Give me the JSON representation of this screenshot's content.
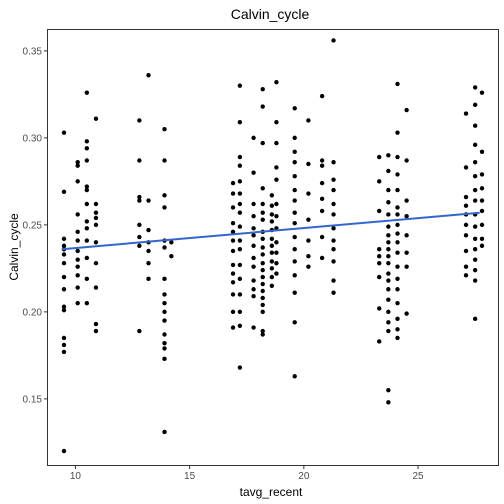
{
  "chart_data": {
    "type": "scatter",
    "title": "Calvin_cycle",
    "xlabel": "tavg_recent",
    "ylabel": "Calvin_cycle",
    "xlim": [
      8.8,
      28.5
    ],
    "ylim": [
      0.112,
      0.362
    ],
    "x_ticks": [
      10,
      15,
      20,
      25
    ],
    "y_ticks": [
      0.15,
      0.2,
      0.25,
      0.3,
      0.35
    ],
    "x_tick_labels": [
      "10",
      "15",
      "20",
      "25"
    ],
    "y_tick_labels": [
      "0.15",
      "0.20",
      "0.25",
      "0.30",
      "0.35"
    ],
    "grid": false,
    "point_color": "#000000",
    "trend_line": {
      "x": [
        9.4,
        27.7
      ],
      "y": [
        0.236,
        0.257
      ],
      "color": "#3366cc"
    },
    "points": [
      [
        9.5,
        0.303
      ],
      [
        9.5,
        0.269
      ],
      [
        9.5,
        0.242
      ],
      [
        9.5,
        0.238
      ],
      [
        9.5,
        0.236
      ],
      [
        9.5,
        0.233
      ],
      [
        9.5,
        0.228
      ],
      [
        9.5,
        0.22
      ],
      [
        9.5,
        0.213
      ],
      [
        9.5,
        0.203
      ],
      [
        9.5,
        0.201
      ],
      [
        9.5,
        0.185
      ],
      [
        9.5,
        0.181
      ],
      [
        9.5,
        0.177
      ],
      [
        9.5,
        0.12
      ],
      [
        10.1,
        0.286
      ],
      [
        10.1,
        0.284
      ],
      [
        10.1,
        0.275
      ],
      [
        10.1,
        0.256
      ],
      [
        10.1,
        0.246
      ],
      [
        10.1,
        0.241
      ],
      [
        10.1,
        0.235
      ],
      [
        10.1,
        0.23
      ],
      [
        10.1,
        0.226
      ],
      [
        10.1,
        0.221
      ],
      [
        10.1,
        0.214
      ],
      [
        10.1,
        0.205
      ],
      [
        10.5,
        0.326
      ],
      [
        10.5,
        0.298
      ],
      [
        10.5,
        0.294
      ],
      [
        10.5,
        0.287
      ],
      [
        10.5,
        0.272
      ],
      [
        10.5,
        0.27
      ],
      [
        10.5,
        0.262
      ],
      [
        10.5,
        0.252
      ],
      [
        10.5,
        0.248
      ],
      [
        10.5,
        0.241
      ],
      [
        10.5,
        0.231
      ],
      [
        10.5,
        0.219
      ],
      [
        10.5,
        0.205
      ],
      [
        10.9,
        0.311
      ],
      [
        10.9,
        0.262
      ],
      [
        10.9,
        0.257
      ],
      [
        10.9,
        0.254
      ],
      [
        10.9,
        0.25
      ],
      [
        10.9,
        0.24
      ],
      [
        10.9,
        0.228
      ],
      [
        10.9,
        0.214
      ],
      [
        10.9,
        0.193
      ],
      [
        10.9,
        0.189
      ],
      [
        12.8,
        0.31
      ],
      [
        12.8,
        0.287
      ],
      [
        12.8,
        0.266
      ],
      [
        12.8,
        0.264
      ],
      [
        12.8,
        0.25
      ],
      [
        12.8,
        0.243
      ],
      [
        12.8,
        0.238
      ],
      [
        12.8,
        0.189
      ],
      [
        13.2,
        0.336
      ],
      [
        13.2,
        0.264
      ],
      [
        13.2,
        0.247
      ],
      [
        13.2,
        0.24
      ],
      [
        13.2,
        0.235
      ],
      [
        13.2,
        0.228
      ],
      [
        13.2,
        0.219
      ],
      [
        13.9,
        0.305
      ],
      [
        13.9,
        0.287
      ],
      [
        13.9,
        0.267
      ],
      [
        13.9,
        0.26
      ],
      [
        13.9,
        0.241
      ],
      [
        13.9,
        0.237
      ],
      [
        13.9,
        0.219
      ],
      [
        13.9,
        0.21
      ],
      [
        13.9,
        0.205
      ],
      [
        13.9,
        0.2
      ],
      [
        13.9,
        0.195
      ],
      [
        13.9,
        0.187
      ],
      [
        13.9,
        0.182
      ],
      [
        13.9,
        0.179
      ],
      [
        13.9,
        0.173
      ],
      [
        13.9,
        0.131
      ],
      [
        14.2,
        0.24
      ],
      [
        14.2,
        0.232
      ],
      [
        16.9,
        0.274
      ],
      [
        16.9,
        0.268
      ],
      [
        16.9,
        0.26
      ],
      [
        16.9,
        0.251
      ],
      [
        16.9,
        0.246
      ],
      [
        16.9,
        0.241
      ],
      [
        16.9,
        0.235
      ],
      [
        16.9,
        0.227
      ],
      [
        16.9,
        0.222
      ],
      [
        16.9,
        0.217
      ],
      [
        16.9,
        0.21
      ],
      [
        16.9,
        0.2
      ],
      [
        16.9,
        0.191
      ],
      [
        17.2,
        0.33
      ],
      [
        17.2,
        0.309
      ],
      [
        17.2,
        0.289
      ],
      [
        17.2,
        0.284
      ],
      [
        17.2,
        0.275
      ],
      [
        17.2,
        0.268
      ],
      [
        17.2,
        0.262
      ],
      [
        17.2,
        0.257
      ],
      [
        17.2,
        0.249
      ],
      [
        17.2,
        0.241
      ],
      [
        17.2,
        0.236
      ],
      [
        17.2,
        0.227
      ],
      [
        17.2,
        0.219
      ],
      [
        17.2,
        0.21
      ],
      [
        17.2,
        0.2
      ],
      [
        17.2,
        0.192
      ],
      [
        17.2,
        0.168
      ],
      [
        17.8,
        0.3
      ],
      [
        17.8,
        0.28
      ],
      [
        17.8,
        0.262
      ],
      [
        17.8,
        0.255
      ],
      [
        17.8,
        0.248
      ],
      [
        17.8,
        0.244
      ],
      [
        17.8,
        0.238
      ],
      [
        17.8,
        0.231
      ],
      [
        17.8,
        0.226
      ],
      [
        17.8,
        0.218
      ],
      [
        17.8,
        0.213
      ],
      [
        17.8,
        0.209
      ],
      [
        17.8,
        0.191
      ],
      [
        18.2,
        0.328
      ],
      [
        18.2,
        0.318
      ],
      [
        18.2,
        0.297
      ],
      [
        18.2,
        0.271
      ],
      [
        18.2,
        0.262
      ],
      [
        18.2,
        0.257
      ],
      [
        18.2,
        0.253
      ],
      [
        18.2,
        0.246
      ],
      [
        18.2,
        0.242
      ],
      [
        18.2,
        0.237
      ],
      [
        18.2,
        0.233
      ],
      [
        18.2,
        0.228
      ],
      [
        18.2,
        0.224
      ],
      [
        18.2,
        0.22
      ],
      [
        18.2,
        0.216
      ],
      [
        18.2,
        0.212
      ],
      [
        18.2,
        0.208
      ],
      [
        18.2,
        0.204
      ],
      [
        18.2,
        0.2
      ],
      [
        18.2,
        0.189
      ],
      [
        18.2,
        0.187
      ],
      [
        18.6,
        0.267
      ],
      [
        18.6,
        0.261
      ],
      [
        18.6,
        0.256
      ],
      [
        18.6,
        0.252
      ],
      [
        18.6,
        0.247
      ],
      [
        18.6,
        0.242
      ],
      [
        18.6,
        0.238
      ],
      [
        18.6,
        0.234
      ],
      [
        18.6,
        0.229
      ],
      [
        18.6,
        0.225
      ],
      [
        18.6,
        0.22
      ],
      [
        18.6,
        0.215
      ],
      [
        18.8,
        0.332
      ],
      [
        18.8,
        0.309
      ],
      [
        18.8,
        0.297
      ],
      [
        18.8,
        0.283
      ],
      [
        18.8,
        0.276
      ],
      [
        18.8,
        0.262
      ],
      [
        18.8,
        0.255
      ],
      [
        18.8,
        0.248
      ],
      [
        18.8,
        0.24
      ],
      [
        18.8,
        0.234
      ],
      [
        18.8,
        0.228
      ],
      [
        18.8,
        0.222
      ],
      [
        19.6,
        0.317
      ],
      [
        19.6,
        0.3
      ],
      [
        19.6,
        0.292
      ],
      [
        19.6,
        0.286
      ],
      [
        19.6,
        0.278
      ],
      [
        19.6,
        0.27
      ],
      [
        19.6,
        0.264
      ],
      [
        19.6,
        0.257
      ],
      [
        19.6,
        0.251
      ],
      [
        19.6,
        0.243
      ],
      [
        19.6,
        0.236
      ],
      [
        19.6,
        0.229
      ],
      [
        19.6,
        0.221
      ],
      [
        19.6,
        0.211
      ],
      [
        19.6,
        0.194
      ],
      [
        19.6,
        0.163
      ],
      [
        20.2,
        0.31
      ],
      [
        20.2,
        0.285
      ],
      [
        20.2,
        0.268
      ],
      [
        20.2,
        0.253
      ],
      [
        20.2,
        0.241
      ],
      [
        20.2,
        0.232
      ],
      [
        20.2,
        0.226
      ],
      [
        20.8,
        0.324
      ],
      [
        20.8,
        0.287
      ],
      [
        20.8,
        0.284
      ],
      [
        20.8,
        0.274
      ],
      [
        20.8,
        0.265
      ],
      [
        20.8,
        0.258
      ],
      [
        20.8,
        0.243
      ],
      [
        20.8,
        0.231
      ],
      [
        21.3,
        0.356
      ],
      [
        21.3,
        0.286
      ],
      [
        21.3,
        0.276
      ],
      [
        21.3,
        0.27
      ],
      [
        21.3,
        0.262
      ],
      [
        21.3,
        0.256
      ],
      [
        21.3,
        0.248
      ],
      [
        21.3,
        0.241
      ],
      [
        21.3,
        0.236
      ],
      [
        21.3,
        0.229
      ],
      [
        21.3,
        0.218
      ],
      [
        21.3,
        0.211
      ],
      [
        23.3,
        0.289
      ],
      [
        23.3,
        0.275
      ],
      [
        23.3,
        0.258
      ],
      [
        23.3,
        0.236
      ],
      [
        23.3,
        0.232
      ],
      [
        23.3,
        0.228
      ],
      [
        23.3,
        0.22
      ],
      [
        23.3,
        0.202
      ],
      [
        23.3,
        0.183
      ],
      [
        23.7,
        0.29
      ],
      [
        23.7,
        0.281
      ],
      [
        23.7,
        0.27
      ],
      [
        23.7,
        0.263
      ],
      [
        23.7,
        0.256
      ],
      [
        23.7,
        0.249
      ],
      [
        23.7,
        0.244
      ],
      [
        23.7,
        0.24
      ],
      [
        23.7,
        0.236
      ],
      [
        23.7,
        0.232
      ],
      [
        23.7,
        0.228
      ],
      [
        23.7,
        0.222
      ],
      [
        23.7,
        0.218
      ],
      [
        23.7,
        0.213
      ],
      [
        23.7,
        0.207
      ],
      [
        23.7,
        0.2
      ],
      [
        23.7,
        0.194
      ],
      [
        23.7,
        0.189
      ],
      [
        23.7,
        0.155
      ],
      [
        23.7,
        0.148
      ],
      [
        24.1,
        0.331
      ],
      [
        24.1,
        0.303
      ],
      [
        24.1,
        0.289
      ],
      [
        24.1,
        0.279
      ],
      [
        24.1,
        0.27
      ],
      [
        24.1,
        0.26
      ],
      [
        24.1,
        0.256
      ],
      [
        24.1,
        0.25
      ],
      [
        24.1,
        0.245
      ],
      [
        24.1,
        0.24
      ],
      [
        24.1,
        0.234
      ],
      [
        24.1,
        0.226
      ],
      [
        24.1,
        0.219
      ],
      [
        24.1,
        0.213
      ],
      [
        24.1,
        0.205
      ],
      [
        24.1,
        0.196
      ],
      [
        24.1,
        0.19
      ],
      [
        24.1,
        0.185
      ],
      [
        24.5,
        0.316
      ],
      [
        24.5,
        0.287
      ],
      [
        24.5,
        0.264
      ],
      [
        24.5,
        0.255
      ],
      [
        24.5,
        0.244
      ],
      [
        24.5,
        0.234
      ],
      [
        24.5,
        0.226
      ],
      [
        24.5,
        0.199
      ],
      [
        27.1,
        0.314
      ],
      [
        27.1,
        0.283
      ],
      [
        27.1,
        0.266
      ],
      [
        27.1,
        0.261
      ],
      [
        27.1,
        0.256
      ],
      [
        27.1,
        0.25
      ],
      [
        27.1,
        0.244
      ],
      [
        27.1,
        0.235
      ],
      [
        27.1,
        0.226
      ],
      [
        27.1,
        0.221
      ],
      [
        27.5,
        0.329
      ],
      [
        27.5,
        0.319
      ],
      [
        27.5,
        0.307
      ],
      [
        27.5,
        0.296
      ],
      [
        27.5,
        0.286
      ],
      [
        27.5,
        0.278
      ],
      [
        27.5,
        0.27
      ],
      [
        27.5,
        0.264
      ],
      [
        27.5,
        0.256
      ],
      [
        27.5,
        0.249
      ],
      [
        27.5,
        0.242
      ],
      [
        27.5,
        0.236
      ],
      [
        27.5,
        0.23
      ],
      [
        27.5,
        0.224
      ],
      [
        27.5,
        0.218
      ],
      [
        27.5,
        0.196
      ],
      [
        27.8,
        0.326
      ],
      [
        27.8,
        0.292
      ],
      [
        27.8,
        0.279
      ],
      [
        27.8,
        0.271
      ],
      [
        27.8,
        0.264
      ],
      [
        27.8,
        0.258
      ],
      [
        27.8,
        0.25
      ],
      [
        27.8,
        0.242
      ],
      [
        27.8,
        0.238
      ]
    ]
  }
}
